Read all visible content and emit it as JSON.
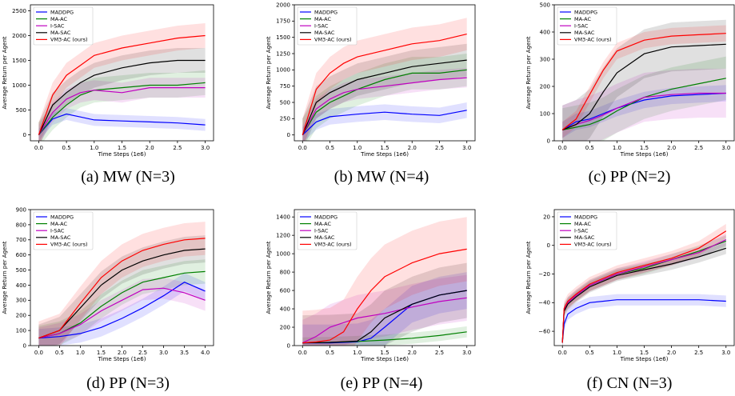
{
  "chart_data": [
    {
      "type": "line",
      "caption": "(a) MW (N=3)",
      "xlabel": "Time Steps (1e6)",
      "ylabel": "Average Return per Agent",
      "xlim": [
        -0.15,
        3.15
      ],
      "ylim": [
        -120,
        2620
      ],
      "xticks": [
        0.0,
        0.5,
        1.0,
        1.5,
        2.0,
        2.5,
        3.0
      ],
      "xtick_labels": [
        "0.0",
        "0.5",
        "1.0",
        "1.5",
        "2.0",
        "2.5",
        "3.0"
      ],
      "yticks": [
        0,
        500,
        1000,
        1500,
        2000,
        2500
      ],
      "legend_position": "top-left",
      "series": [
        {
          "name": "MADDPG",
          "color": "#0000ff",
          "x": [
            0,
            0.25,
            0.5,
            0.75,
            1.0,
            1.5,
            2.0,
            2.5,
            3.0
          ],
          "y": [
            0,
            320,
            420,
            360,
            300,
            280,
            260,
            240,
            200
          ],
          "band": 120
        },
        {
          "name": "MA-AC",
          "color": "#008000",
          "x": [
            0,
            0.25,
            0.5,
            0.75,
            1.0,
            1.5,
            2.0,
            2.5,
            3.0
          ],
          "y": [
            0,
            350,
            600,
            800,
            900,
            950,
            1000,
            1000,
            1050
          ],
          "band": 250
        },
        {
          "name": "I-SAC",
          "color": "#c000c0",
          "x": [
            0,
            0.25,
            0.5,
            0.75,
            1.0,
            1.5,
            2.0,
            2.5,
            3.0
          ],
          "y": [
            0,
            450,
            720,
            850,
            900,
            850,
            950,
            950,
            950
          ],
          "band": 200
        },
        {
          "name": "MA-SAC",
          "color": "#000000",
          "x": [
            0,
            0.25,
            0.5,
            0.75,
            1.0,
            1.5,
            2.0,
            2.5,
            3.0
          ],
          "y": [
            0,
            600,
            850,
            1050,
            1200,
            1350,
            1450,
            1500,
            1500
          ],
          "band": 250
        },
        {
          "name": "VM3-AC (ours)",
          "color": "#ff0000",
          "x": [
            0,
            0.25,
            0.5,
            0.75,
            1.0,
            1.5,
            2.0,
            2.5,
            3.0
          ],
          "y": [
            0,
            800,
            1200,
            1400,
            1600,
            1750,
            1850,
            1950,
            2000
          ],
          "band": 250
        }
      ]
    },
    {
      "type": "line",
      "caption": "(b) MW (N=4)",
      "xlabel": "Time Steps (1e6)",
      "ylabel": "Average Return per Agent",
      "xlim": [
        -0.15,
        3.15
      ],
      "ylim": [
        -90,
        2000
      ],
      "xticks": [
        0.0,
        0.5,
        1.0,
        1.5,
        2.0,
        2.5,
        3.0
      ],
      "xtick_labels": [
        "0.0",
        "0.5",
        "1.0",
        "1.5",
        "2.0",
        "2.5",
        "3.0"
      ],
      "yticks": [
        0,
        250,
        500,
        750,
        1000,
        1250,
        1500,
        1750,
        2000
      ],
      "legend_position": "top-left",
      "series": [
        {
          "name": "MADDPG",
          "color": "#0000ff",
          "x": [
            0,
            0.25,
            0.5,
            0.75,
            1.0,
            1.5,
            2.0,
            2.5,
            3.0
          ],
          "y": [
            0,
            200,
            280,
            300,
            320,
            350,
            320,
            300,
            380
          ],
          "band": 120
        },
        {
          "name": "MA-AC",
          "color": "#008000",
          "x": [
            0,
            0.25,
            0.5,
            0.75,
            1.0,
            1.5,
            2.0,
            2.5,
            3.0
          ],
          "y": [
            0,
            350,
            500,
            600,
            700,
            850,
            950,
            950,
            1000
          ],
          "band": 250
        },
        {
          "name": "I-SAC",
          "color": "#c000c0",
          "x": [
            0,
            0.25,
            0.5,
            0.75,
            1.0,
            1.5,
            2.0,
            2.5,
            3.0
          ],
          "y": [
            0,
            400,
            550,
            650,
            700,
            750,
            800,
            850,
            880
          ],
          "band": 150
        },
        {
          "name": "MA-SAC",
          "color": "#000000",
          "x": [
            0,
            0.25,
            0.5,
            0.75,
            1.0,
            1.5,
            2.0,
            2.5,
            3.0
          ],
          "y": [
            0,
            500,
            650,
            750,
            850,
            950,
            1050,
            1100,
            1150
          ],
          "band": 250
        },
        {
          "name": "VM3-AC (ours)",
          "color": "#ff0000",
          "x": [
            0,
            0.25,
            0.5,
            0.75,
            1.0,
            1.5,
            2.0,
            2.5,
            3.0
          ],
          "y": [
            0,
            700,
            950,
            1100,
            1200,
            1300,
            1400,
            1450,
            1550
          ],
          "band": 250
        }
      ]
    },
    {
      "type": "line",
      "caption": "(c) PP (N=2)",
      "xlabel": "Time Steps (1e6)",
      "ylabel": "Average Return per Agent",
      "xlim": [
        -0.15,
        3.15
      ],
      "ylim": [
        0,
        500
      ],
      "xticks": [
        0.0,
        0.5,
        1.0,
        1.5,
        2.0,
        2.5,
        3.0
      ],
      "xtick_labels": [
        "0.0",
        "0.5",
        "1.0",
        "1.5",
        "2.0",
        "2.5",
        "3.0"
      ],
      "yticks": [
        0,
        100,
        200,
        300,
        400,
        500
      ],
      "legend_position": "top-left",
      "series": [
        {
          "name": "MADDPG",
          "color": "#0000ff",
          "x": [
            0,
            0.25,
            0.5,
            0.75,
            1.0,
            1.5,
            2.0,
            2.5,
            3.0
          ],
          "y": [
            40,
            70,
            80,
            100,
            120,
            150,
            165,
            170,
            175
          ],
          "band": 30
        },
        {
          "name": "MA-AC",
          "color": "#008000",
          "x": [
            0,
            0.25,
            0.5,
            0.75,
            1.0,
            1.5,
            2.0,
            2.5,
            3.0
          ],
          "y": [
            40,
            50,
            60,
            80,
            110,
            160,
            190,
            210,
            230
          ],
          "band": 80
        },
        {
          "name": "I-SAC",
          "color": "#c000c0",
          "x": [
            0,
            0.25,
            0.5,
            0.75,
            1.0,
            1.5,
            2.0,
            2.5,
            3.0
          ],
          "y": [
            40,
            60,
            75,
            95,
            120,
            160,
            170,
            175,
            175
          ],
          "band": 90
        },
        {
          "name": "MA-SAC",
          "color": "#000000",
          "x": [
            0,
            0.25,
            0.5,
            0.75,
            1.0,
            1.5,
            2.0,
            2.5,
            3.0
          ],
          "y": [
            40,
            60,
            100,
            180,
            250,
            320,
            345,
            350,
            355
          ],
          "band": 90
        },
        {
          "name": "VM3-AC (ours)",
          "color": "#ff0000",
          "x": [
            0,
            0.25,
            0.5,
            0.75,
            1.0,
            1.5,
            2.0,
            2.5,
            3.0
          ],
          "y": [
            40,
            80,
            170,
            260,
            330,
            370,
            385,
            390,
            395
          ],
          "band": 30
        }
      ]
    },
    {
      "type": "line",
      "caption": "(d) PP (N=3)",
      "xlabel": "Time Steps (1e6)",
      "ylabel": "Average Return per Agent",
      "xlim": [
        -0.2,
        4.2
      ],
      "ylim": [
        0,
        900
      ],
      "xticks": [
        0.0,
        0.5,
        1.0,
        1.5,
        2.0,
        2.5,
        3.0,
        3.5,
        4.0
      ],
      "xtick_labels": [
        "0.0",
        "0.5",
        "1.0",
        "1.5",
        "2.0",
        "2.5",
        "3.0",
        "3.5",
        "4.0"
      ],
      "yticks": [
        0,
        100,
        200,
        300,
        400,
        500,
        600,
        700,
        800,
        900
      ],
      "legend_position": "top-left",
      "series": [
        {
          "name": "MADDPG",
          "color": "#0000ff",
          "x": [
            0,
            0.5,
            1.0,
            1.5,
            2.0,
            2.5,
            3.0,
            3.5,
            4.0
          ],
          "y": [
            50,
            60,
            80,
            120,
            180,
            250,
            330,
            420,
            360
          ],
          "band": 60
        },
        {
          "name": "MA-AC",
          "color": "#008000",
          "x": [
            0,
            0.5,
            1.0,
            1.5,
            2.0,
            2.5,
            3.0,
            3.5,
            4.0
          ],
          "y": [
            50,
            80,
            150,
            260,
            350,
            420,
            450,
            480,
            490
          ],
          "band": 80
        },
        {
          "name": "I-SAC",
          "color": "#c000c0",
          "x": [
            0,
            0.5,
            1.0,
            1.5,
            2.0,
            2.5,
            3.0,
            3.5,
            4.0
          ],
          "y": [
            50,
            80,
            140,
            230,
            300,
            370,
            380,
            350,
            300
          ],
          "band": 70
        },
        {
          "name": "MA-SAC",
          "color": "#000000",
          "x": [
            0,
            0.5,
            1.0,
            1.5,
            2.0,
            2.5,
            3.0,
            3.5,
            4.0
          ],
          "y": [
            50,
            100,
            250,
            400,
            500,
            560,
            600,
            630,
            640
          ],
          "band": 90
        },
        {
          "name": "VM3-AC (ours)",
          "color": "#ff0000",
          "x": [
            0,
            0.5,
            1.0,
            1.5,
            2.0,
            2.5,
            3.0,
            3.5,
            4.0
          ],
          "y": [
            50,
            100,
            280,
            450,
            560,
            630,
            670,
            700,
            710
          ],
          "band": 110
        }
      ]
    },
    {
      "type": "line",
      "caption": "(e) PP (N=4)",
      "xlabel": "Time Steps (1e6)",
      "ylabel": "Average Return per Agent",
      "xlim": [
        -0.15,
        3.15
      ],
      "ylim": [
        0,
        1480
      ],
      "xticks": [
        0.0,
        0.5,
        1.0,
        1.5,
        2.0,
        2.5,
        3.0
      ],
      "xtick_labels": [
        "0.0",
        "0.5",
        "1.0",
        "1.5",
        "2.0",
        "2.5",
        "3.0"
      ],
      "yticks": [
        0,
        200,
        400,
        600,
        800,
        1000,
        1200,
        1400
      ],
      "legend_position": "top-left",
      "series": [
        {
          "name": "MADDPG",
          "color": "#0000ff",
          "x": [
            0,
            0.5,
            1.0,
            1.25,
            1.5,
            2.0,
            2.5,
            3.0
          ],
          "y": [
            30,
            30,
            40,
            80,
            200,
            450,
            550,
            600
          ],
          "band": 200
        },
        {
          "name": "MA-AC",
          "color": "#008000",
          "x": [
            0,
            0.5,
            1.0,
            1.5,
            2.0,
            2.5,
            3.0
          ],
          "y": [
            30,
            35,
            45,
            60,
            80,
            110,
            150
          ],
          "band": 60
        },
        {
          "name": "I-SAC",
          "color": "#c000c0",
          "x": [
            0,
            0.25,
            0.5,
            0.75,
            1.0,
            1.5,
            2.0,
            2.5,
            3.0
          ],
          "y": [
            30,
            100,
            200,
            250,
            300,
            350,
            420,
            480,
            520
          ],
          "band": 250
        },
        {
          "name": "MA-SAC",
          "color": "#000000",
          "x": [
            0,
            0.5,
            1.0,
            1.25,
            1.5,
            2.0,
            2.5,
            3.0
          ],
          "y": [
            30,
            35,
            50,
            150,
            300,
            450,
            550,
            600
          ],
          "band": 300
        },
        {
          "name": "VM3-AC (ours)",
          "color": "#ff0000",
          "x": [
            0,
            0.25,
            0.5,
            0.75,
            1.0,
            1.25,
            1.5,
            2.0,
            2.5,
            3.0
          ],
          "y": [
            30,
            40,
            60,
            150,
            400,
            600,
            750,
            900,
            1000,
            1050
          ],
          "band": 350
        }
      ]
    },
    {
      "type": "line",
      "caption": "(f) CN (N=3)",
      "xlabel": "Time Steps (1e6)",
      "ylabel": "Average Return per Agent",
      "xlim": [
        -0.15,
        3.15
      ],
      "ylim": [
        -70,
        25
      ],
      "xticks": [
        0.0,
        0.5,
        1.0,
        1.5,
        2.0,
        2.5,
        3.0
      ],
      "xtick_labels": [
        "0.0",
        "0.5",
        "1.0",
        "1.5",
        "2.0",
        "2.5",
        "3.0"
      ],
      "yticks": [
        -60,
        -40,
        -20,
        0,
        20
      ],
      "legend_position": "top-left",
      "series": [
        {
          "name": "MADDPG",
          "color": "#0000ff",
          "x": [
            0,
            0.03,
            0.1,
            0.25,
            0.5,
            1.0,
            1.5,
            2.0,
            2.5,
            3.0
          ],
          "y": [
            -68,
            -55,
            -48,
            -44,
            -40,
            -38,
            -38,
            -38,
            -38,
            -39
          ],
          "band": 4
        },
        {
          "name": "MA-AC",
          "color": "#008000",
          "x": [
            0,
            0.03,
            0.1,
            0.25,
            0.5,
            1.0,
            1.5,
            2.0,
            2.5,
            3.0
          ],
          "y": [
            -68,
            -45,
            -40,
            -35,
            -28,
            -20,
            -16,
            -10,
            -4,
            3
          ],
          "band": 4
        },
        {
          "name": "I-SAC",
          "color": "#c000c0",
          "x": [
            0,
            0.03,
            0.1,
            0.25,
            0.5,
            1.0,
            1.5,
            2.0,
            2.5,
            3.0
          ],
          "y": [
            -68,
            -45,
            -40,
            -35,
            -28,
            -20,
            -15,
            -10,
            -5,
            4
          ],
          "band": 4
        },
        {
          "name": "MA-SAC",
          "color": "#000000",
          "x": [
            0,
            0.03,
            0.1,
            0.25,
            0.5,
            1.0,
            1.5,
            2.0,
            2.5,
            3.0
          ],
          "y": [
            -68,
            -46,
            -41,
            -36,
            -29,
            -21,
            -17,
            -13,
            -8,
            -2
          ],
          "band": 4
        },
        {
          "name": "VM3-AC (ours)",
          "color": "#ff0000",
          "x": [
            0,
            0.03,
            0.1,
            0.25,
            0.5,
            1.0,
            1.5,
            2.0,
            2.5,
            3.0
          ],
          "y": [
            -68,
            -44,
            -39,
            -34,
            -27,
            -19,
            -14,
            -9,
            -2,
            10
          ],
          "band": 5
        }
      ]
    }
  ]
}
